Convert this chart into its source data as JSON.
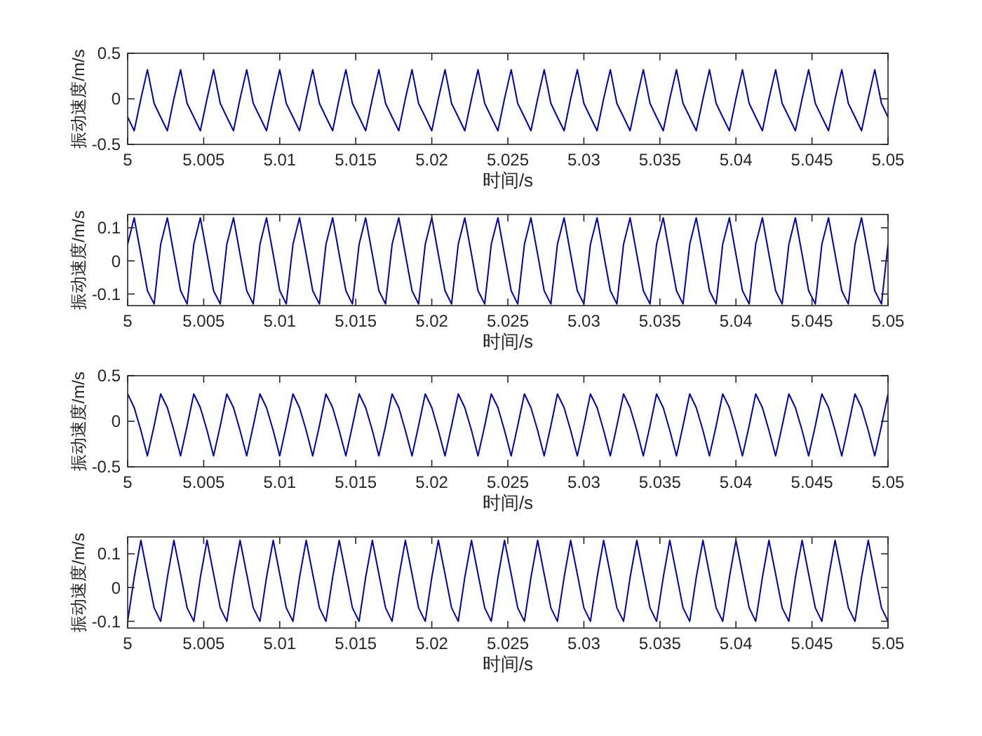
{
  "chart_data": [
    {
      "type": "line",
      "xlabel": "时间/s",
      "ylabel": "振动速度/m/s",
      "xlim": [
        5,
        5.05
      ],
      "ylim": [
        -0.5,
        0.5
      ],
      "xticks": [
        5,
        5.005,
        5.01,
        5.015,
        5.02,
        5.025,
        5.03,
        5.035,
        5.04,
        5.045,
        5.05
      ],
      "yticks": [
        -0.5,
        0,
        0.5
      ],
      "x": [
        5,
        5.00043,
        5.00087,
        5.0013,
        5.00174,
        5.00217,
        5.00261,
        5.00304,
        5.00348,
        5.00391,
        5.00435,
        5.00478,
        5.00522,
        5.00565,
        5.00609,
        5.00652,
        5.00696,
        5.00739,
        5.00783,
        5.00826,
        5.0087,
        5.00913,
        5.00957,
        5.01,
        5.01043,
        5.01087,
        5.0113,
        5.01174,
        5.01217,
        5.01261,
        5.01304,
        5.01348,
        5.01391,
        5.01435,
        5.01478,
        5.01522,
        5.01565,
        5.01609,
        5.01652,
        5.01696,
        5.01739,
        5.01783,
        5.01826,
        5.0187,
        5.01913,
        5.01957,
        5.02,
        5.02043,
        5.02087,
        5.0213,
        5.02174,
        5.02217,
        5.02261,
        5.02304,
        5.02348,
        5.02391,
        5.02435,
        5.02478,
        5.02522,
        5.02565,
        5.02609,
        5.02652,
        5.02696,
        5.02739,
        5.02783,
        5.02826,
        5.0287,
        5.02913,
        5.02957,
        5.03,
        5.03043,
        5.03087,
        5.0313,
        5.03174,
        5.03217,
        5.03261,
        5.03304,
        5.03348,
        5.03391,
        5.03435,
        5.03478,
        5.03522,
        5.03565,
        5.03609,
        5.03652,
        5.03696,
        5.03739,
        5.03783,
        5.03826,
        5.0387,
        5.03913,
        5.03957,
        5.04,
        5.04043,
        5.04087,
        5.0413,
        5.04174,
        5.04217,
        5.04261,
        5.04304,
        5.04348,
        5.04391,
        5.04435,
        5.04478,
        5.04522,
        5.04565,
        5.04609,
        5.04652,
        5.04696,
        5.04739,
        5.04783,
        5.04826,
        5.0487,
        5.04913,
        5.04957,
        5.05
      ],
      "series": [
        {
          "color": "#0000a8",
          "values": [
            -0.2,
            -0.35,
            0,
            0.32,
            -0.05,
            -0.2,
            -0.35,
            0,
            0.32,
            -0.05,
            -0.2,
            -0.35,
            0,
            0.32,
            -0.05,
            -0.2,
            -0.35,
            0,
            0.32,
            -0.05,
            -0.2,
            -0.35,
            0,
            0.32,
            -0.05,
            -0.2,
            -0.35,
            0,
            0.32,
            -0.05,
            -0.2,
            -0.35,
            0,
            0.32,
            -0.05,
            -0.2,
            -0.35,
            0,
            0.32,
            -0.05,
            -0.2,
            -0.35,
            0,
            0.32,
            -0.05,
            -0.2,
            -0.35,
            0,
            0.32,
            -0.05,
            -0.2,
            -0.35,
            0,
            0.32,
            -0.05,
            -0.2,
            -0.35,
            0,
            0.32,
            -0.05,
            -0.2,
            -0.35,
            0,
            0.32,
            -0.05,
            -0.2,
            -0.35,
            0,
            0.32,
            -0.05,
            -0.2,
            -0.35,
            0,
            0.32,
            -0.05,
            -0.2,
            -0.35,
            0,
            0.32,
            -0.05,
            -0.2,
            -0.35,
            0,
            0.32,
            -0.05,
            -0.2,
            -0.35,
            0,
            0.32,
            -0.05,
            -0.2,
            -0.35,
            0,
            0.32,
            -0.05,
            -0.2,
            -0.35,
            0,
            0.32,
            -0.05,
            -0.2,
            -0.35,
            0,
            0.32,
            -0.05,
            -0.2,
            -0.35,
            0,
            0.32,
            -0.05,
            -0.2,
            -0.35,
            0,
            0.32,
            -0.05,
            -0.2
          ]
        }
      ]
    },
    {
      "type": "line",
      "xlabel": "时间/s",
      "ylabel": "振动速度/m/s",
      "xlim": [
        5,
        5.05
      ],
      "ylim": [
        -0.135,
        0.14
      ],
      "xticks": [
        5,
        5.005,
        5.01,
        5.015,
        5.02,
        5.025,
        5.03,
        5.035,
        5.04,
        5.045,
        5.05
      ],
      "yticks": [
        -0.1,
        0,
        0.1
      ],
      "x": [
        5,
        5.00043,
        5.00087,
        5.0013,
        5.00174,
        5.00217,
        5.00261,
        5.00304,
        5.00348,
        5.00391,
        5.00435,
        5.00478,
        5.00522,
        5.00565,
        5.00609,
        5.00652,
        5.00696,
        5.00739,
        5.00783,
        5.00826,
        5.0087,
        5.00913,
        5.00957,
        5.01,
        5.01043,
        5.01087,
        5.0113,
        5.01174,
        5.01217,
        5.01261,
        5.01304,
        5.01348,
        5.01391,
        5.01435,
        5.01478,
        5.01522,
        5.01565,
        5.01609,
        5.01652,
        5.01696,
        5.01739,
        5.01783,
        5.01826,
        5.0187,
        5.01913,
        5.01957,
        5.02,
        5.02043,
        5.02087,
        5.0213,
        5.02174,
        5.02217,
        5.02261,
        5.02304,
        5.02348,
        5.02391,
        5.02435,
        5.02478,
        5.02522,
        5.02565,
        5.02609,
        5.02652,
        5.02696,
        5.02739,
        5.02783,
        5.02826,
        5.0287,
        5.02913,
        5.02957,
        5.03,
        5.03043,
        5.03087,
        5.0313,
        5.03174,
        5.03217,
        5.03261,
        5.03304,
        5.03348,
        5.03391,
        5.03435,
        5.03478,
        5.03522,
        5.03565,
        5.03609,
        5.03652,
        5.03696,
        5.03739,
        5.03783,
        5.03826,
        5.0387,
        5.03913,
        5.03957,
        5.04,
        5.04043,
        5.04087,
        5.0413,
        5.04174,
        5.04217,
        5.04261,
        5.04304,
        5.04348,
        5.04391,
        5.04435,
        5.04478,
        5.04522,
        5.04565,
        5.04609,
        5.04652,
        5.04696,
        5.04739,
        5.04783,
        5.04826,
        5.0487,
        5.04913,
        5.04957,
        5.05
      ],
      "series": [
        {
          "color": "#0000a8",
          "values": [
            0.05,
            0.13,
            0.02,
            -0.09,
            -0.13,
            0.05,
            0.13,
            0.02,
            -0.09,
            -0.13,
            0.05,
            0.13,
            0.02,
            -0.09,
            -0.13,
            0.05,
            0.13,
            0.02,
            -0.09,
            -0.13,
            0.05,
            0.13,
            0.02,
            -0.09,
            -0.13,
            0.05,
            0.13,
            0.02,
            -0.09,
            -0.13,
            0.05,
            0.13,
            0.02,
            -0.09,
            -0.13,
            0.05,
            0.13,
            0.02,
            -0.09,
            -0.13,
            0.05,
            0.13,
            0.02,
            -0.09,
            -0.13,
            0.05,
            0.13,
            0.02,
            -0.09,
            -0.13,
            0.05,
            0.13,
            0.02,
            -0.09,
            -0.13,
            0.05,
            0.13,
            0.02,
            -0.09,
            -0.13,
            0.05,
            0.13,
            0.02,
            -0.09,
            -0.13,
            0.05,
            0.13,
            0.02,
            -0.09,
            -0.13,
            0.05,
            0.13,
            0.02,
            -0.09,
            -0.13,
            0.05,
            0.13,
            0.02,
            -0.09,
            -0.13,
            0.05,
            0.13,
            0.02,
            -0.09,
            -0.13,
            0.05,
            0.13,
            0.02,
            -0.09,
            -0.13,
            0.05,
            0.13,
            0.02,
            -0.09,
            -0.13,
            0.05,
            0.13,
            0.02,
            -0.09,
            -0.13,
            0.05,
            0.13,
            0.02,
            -0.09,
            -0.13,
            0.05,
            0.13,
            0.02,
            -0.09,
            -0.13,
            0.05,
            0.13,
            0.02,
            -0.09,
            -0.13,
            0.05
          ]
        }
      ]
    },
    {
      "type": "line",
      "xlabel": "时间/s",
      "ylabel": "振动速度/m/s",
      "xlim": [
        5,
        5.05
      ],
      "ylim": [
        -0.5,
        0.5
      ],
      "xticks": [
        5,
        5.005,
        5.01,
        5.015,
        5.02,
        5.025,
        5.03,
        5.035,
        5.04,
        5.045,
        5.05
      ],
      "yticks": [
        -0.5,
        0,
        0.5
      ],
      "x": [
        5,
        5.00043,
        5.00087,
        5.0013,
        5.00174,
        5.00217,
        5.00261,
        5.00304,
        5.00348,
        5.00391,
        5.00435,
        5.00478,
        5.00522,
        5.00565,
        5.00609,
        5.00652,
        5.00696,
        5.00739,
        5.00783,
        5.00826,
        5.0087,
        5.00913,
        5.00957,
        5.01,
        5.01043,
        5.01087,
        5.0113,
        5.01174,
        5.01217,
        5.01261,
        5.01304,
        5.01348,
        5.01391,
        5.01435,
        5.01478,
        5.01522,
        5.01565,
        5.01609,
        5.01652,
        5.01696,
        5.01739,
        5.01783,
        5.01826,
        5.0187,
        5.01913,
        5.01957,
        5.02,
        5.02043,
        5.02087,
        5.0213,
        5.02174,
        5.02217,
        5.02261,
        5.02304,
        5.02348,
        5.02391,
        5.02435,
        5.02478,
        5.02522,
        5.02565,
        5.02609,
        5.02652,
        5.02696,
        5.02739,
        5.02783,
        5.02826,
        5.0287,
        5.02913,
        5.02957,
        5.03,
        5.03043,
        5.03087,
        5.0313,
        5.03174,
        5.03217,
        5.03261,
        5.03304,
        5.03348,
        5.03391,
        5.03435,
        5.03478,
        5.03522,
        5.03565,
        5.03609,
        5.03652,
        5.03696,
        5.03739,
        5.03783,
        5.03826,
        5.0387,
        5.03913,
        5.03957,
        5.04,
        5.04043,
        5.04087,
        5.0413,
        5.04174,
        5.04217,
        5.04261,
        5.04304,
        5.04348,
        5.04391,
        5.04435,
        5.04478,
        5.04522,
        5.04565,
        5.04609,
        5.04652,
        5.04696,
        5.04739,
        5.04783,
        5.04826,
        5.0487,
        5.04913,
        5.04957,
        5.05
      ],
      "series": [
        {
          "color": "#0000a8",
          "values": [
            0.3,
            0.15,
            -0.1,
            -0.38,
            -0.05,
            0.3,
            0.15,
            -0.1,
            -0.38,
            -0.05,
            0.3,
            0.15,
            -0.1,
            -0.38,
            -0.05,
            0.3,
            0.15,
            -0.1,
            -0.38,
            -0.05,
            0.3,
            0.15,
            -0.1,
            -0.38,
            -0.05,
            0.3,
            0.15,
            -0.1,
            -0.38,
            -0.05,
            0.3,
            0.15,
            -0.1,
            -0.38,
            -0.05,
            0.3,
            0.15,
            -0.1,
            -0.38,
            -0.05,
            0.3,
            0.15,
            -0.1,
            -0.38,
            -0.05,
            0.3,
            0.15,
            -0.1,
            -0.38,
            -0.05,
            0.3,
            0.15,
            -0.1,
            -0.38,
            -0.05,
            0.3,
            0.15,
            -0.1,
            -0.38,
            -0.05,
            0.3,
            0.15,
            -0.1,
            -0.38,
            -0.05,
            0.3,
            0.15,
            -0.1,
            -0.38,
            -0.05,
            0.3,
            0.15,
            -0.1,
            -0.38,
            -0.05,
            0.3,
            0.15,
            -0.1,
            -0.38,
            -0.05,
            0.3,
            0.15,
            -0.1,
            -0.38,
            -0.05,
            0.3,
            0.15,
            -0.1,
            -0.38,
            -0.05,
            0.3,
            0.15,
            -0.1,
            -0.38,
            -0.05,
            0.3,
            0.15,
            -0.1,
            -0.38,
            -0.05,
            0.3,
            0.15,
            -0.1,
            -0.38,
            -0.05,
            0.3,
            0.15,
            -0.1,
            -0.38,
            -0.05,
            0.3,
            0.15,
            -0.1,
            -0.38,
            -0.05,
            0.3
          ]
        }
      ]
    },
    {
      "type": "line",
      "xlabel": "时间/s",
      "ylabel": "振动速度/m/s",
      "xlim": [
        5,
        5.05
      ],
      "ylim": [
        -0.12,
        0.15
      ],
      "xticks": [
        5,
        5.005,
        5.01,
        5.015,
        5.02,
        5.025,
        5.03,
        5.035,
        5.04,
        5.045,
        5.05
      ],
      "yticks": [
        -0.1,
        0,
        0.1
      ],
      "x": [
        5,
        5.00043,
        5.00087,
        5.0013,
        5.00174,
        5.00217,
        5.00261,
        5.00304,
        5.00348,
        5.00391,
        5.00435,
        5.00478,
        5.00522,
        5.00565,
        5.00609,
        5.00652,
        5.00696,
        5.00739,
        5.00783,
        5.00826,
        5.0087,
        5.00913,
        5.00957,
        5.01,
        5.01043,
        5.01087,
        5.0113,
        5.01174,
        5.01217,
        5.01261,
        5.01304,
        5.01348,
        5.01391,
        5.01435,
        5.01478,
        5.01522,
        5.01565,
        5.01609,
        5.01652,
        5.01696,
        5.01739,
        5.01783,
        5.01826,
        5.0187,
        5.01913,
        5.01957,
        5.02,
        5.02043,
        5.02087,
        5.0213,
        5.02174,
        5.02217,
        5.02261,
        5.02304,
        5.02348,
        5.02391,
        5.02435,
        5.02478,
        5.02522,
        5.02565,
        5.02609,
        5.02652,
        5.02696,
        5.02739,
        5.02783,
        5.02826,
        5.0287,
        5.02913,
        5.02957,
        5.03,
        5.03043,
        5.03087,
        5.0313,
        5.03174,
        5.03217,
        5.03261,
        5.03304,
        5.03348,
        5.03391,
        5.03435,
        5.03478,
        5.03522,
        5.03565,
        5.03609,
        5.03652,
        5.03696,
        5.03739,
        5.03783,
        5.03826,
        5.0387,
        5.03913,
        5.03957,
        5.04,
        5.04043,
        5.04087,
        5.0413,
        5.04174,
        5.04217,
        5.04261,
        5.04304,
        5.04348,
        5.04391,
        5.04435,
        5.04478,
        5.04522,
        5.04565,
        5.04609,
        5.04652,
        5.04696,
        5.04739,
        5.04783,
        5.04826,
        5.0487,
        5.04913,
        5.04957,
        5.05
      ],
      "series": [
        {
          "color": "#0000a8",
          "values": [
            -0.1,
            0.03,
            0.14,
            0.04,
            -0.06,
            -0.1,
            0.03,
            0.14,
            0.04,
            -0.06,
            -0.1,
            0.03,
            0.14,
            0.04,
            -0.06,
            -0.1,
            0.03,
            0.14,
            0.04,
            -0.06,
            -0.1,
            0.03,
            0.14,
            0.04,
            -0.06,
            -0.1,
            0.03,
            0.14,
            0.04,
            -0.06,
            -0.1,
            0.03,
            0.14,
            0.04,
            -0.06,
            -0.1,
            0.03,
            0.14,
            0.04,
            -0.06,
            -0.1,
            0.03,
            0.14,
            0.04,
            -0.06,
            -0.1,
            0.03,
            0.14,
            0.04,
            -0.06,
            -0.1,
            0.03,
            0.14,
            0.04,
            -0.06,
            -0.1,
            0.03,
            0.14,
            0.04,
            -0.06,
            -0.1,
            0.03,
            0.14,
            0.04,
            -0.06,
            -0.1,
            0.03,
            0.14,
            0.04,
            -0.06,
            -0.1,
            0.03,
            0.14,
            0.04,
            -0.06,
            -0.1,
            0.03,
            0.14,
            0.04,
            -0.06,
            -0.1,
            0.03,
            0.14,
            0.04,
            -0.06,
            -0.1,
            0.03,
            0.14,
            0.04,
            -0.06,
            -0.1,
            0.03,
            0.14,
            0.04,
            -0.06,
            -0.1,
            0.03,
            0.14,
            0.04,
            -0.06,
            -0.1,
            0.03,
            0.14,
            0.04,
            -0.06,
            -0.1,
            0.03,
            0.14,
            0.04,
            -0.06,
            -0.1,
            0.03,
            0.14,
            0.04,
            -0.06,
            -0.1
          ]
        }
      ]
    }
  ]
}
